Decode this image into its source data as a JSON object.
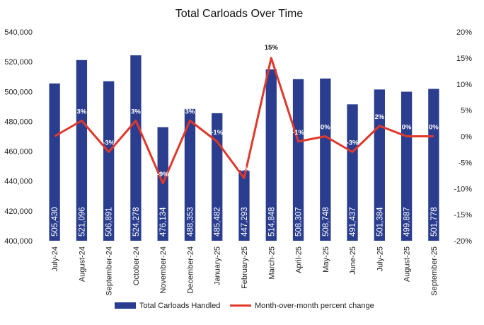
{
  "chart_data": {
    "type": "bar",
    "title": "Total Carloads Over Time",
    "categories": [
      "July-24",
      "August-24",
      "September-24",
      "October-24",
      "November-24",
      "December-24",
      "January-25",
      "February-25",
      "March-25",
      "April-25",
      "May-25",
      "June-25",
      "July-25",
      "August-25",
      "September-25"
    ],
    "series": [
      {
        "name": "Total Carloads Handled",
        "type": "bar",
        "axis": "left",
        "color": "#2a3d8f",
        "values": [
          505430,
          521096,
          506891,
          524278,
          476134,
          488353,
          485482,
          447293,
          514848,
          508307,
          508748,
          491437,
          501384,
          499887,
          501778
        ],
        "labels": [
          "505,430",
          "521,096",
          "506,891",
          "524,278",
          "476,134",
          "488,353",
          "485,482",
          "447,293",
          "514,848",
          "508,307",
          "508,748",
          "491,437",
          "501,384",
          "499,887",
          "501,778"
        ]
      },
      {
        "name": "Month-over-month percent change",
        "type": "line",
        "axis": "right",
        "color": "#e0382b",
        "values": [
          0,
          3,
          -3,
          3,
          -9,
          3,
          -1,
          -8,
          15,
          -1,
          0,
          -3,
          2,
          0,
          0
        ],
        "labels": [
          "",
          "3%",
          "-3%",
          "3%",
          "-9%",
          "3%",
          "-1%",
          "-8%",
          "15%",
          "-1%",
          "0%",
          "-3%",
          "2%",
          "0%",
          "0%"
        ]
      }
    ],
    "y_left": {
      "ylim": [
        400000,
        540000
      ],
      "ticks": [
        400000,
        420000,
        440000,
        460000,
        480000,
        500000,
        520000,
        540000
      ],
      "tick_labels": [
        "400,000",
        "420,000",
        "440,000",
        "460,000",
        "480,000",
        "500,000",
        "520,000",
        "540,000"
      ]
    },
    "y_right": {
      "ylim": [
        -20,
        20
      ],
      "ticks": [
        -20,
        -15,
        -10,
        -5,
        0,
        5,
        10,
        15,
        20
      ],
      "tick_labels": [
        "-20%",
        "-15%",
        "-10%",
        "-5%",
        "0%",
        "5%",
        "10%",
        "15%",
        "20%"
      ]
    },
    "legend_position": "bottom",
    "grid": false
  }
}
